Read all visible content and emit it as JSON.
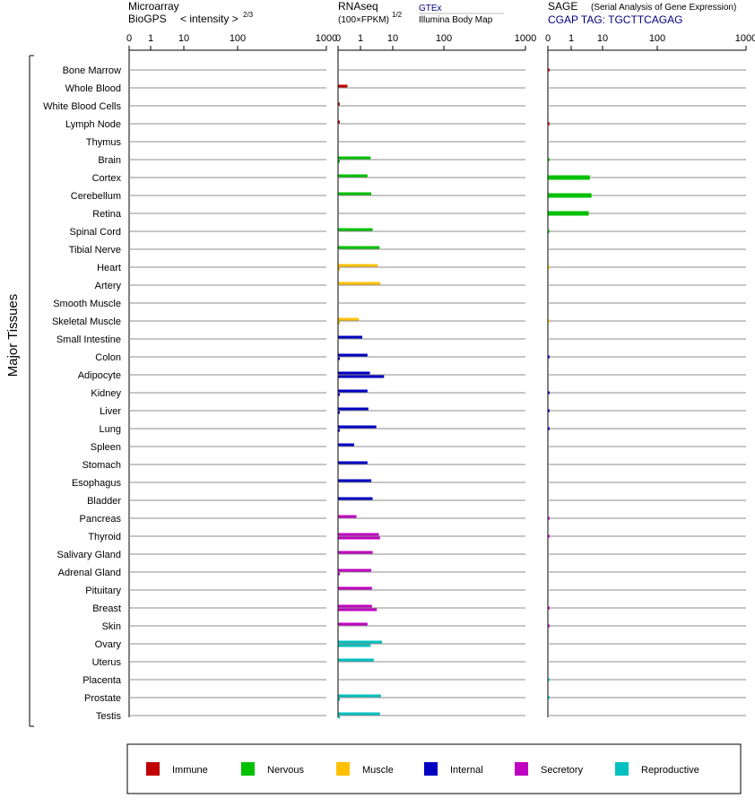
{
  "colors": {
    "Immune": "#c00000",
    "Nervous": "#00c000",
    "Muscle": "#ffc000",
    "Internal": "#0000c0",
    "Secretory": "#c000c0",
    "Reproductive": "#00c0c0"
  },
  "headers": {
    "microarray": {
      "line1": "Microarray",
      "line2": "BioGPS",
      "line3": "< intensity >",
      "exp": "2/3"
    },
    "rnaseq": {
      "line1": "RNAseq",
      "line2": "(100×FPKM)",
      "exp": "1/2",
      "src1": "GTEx",
      "src2": "Illumina Body Map"
    },
    "sage": {
      "line1": "SAGE",
      "line1b": "(Serial Analysis of Gene Expression)",
      "line2": "CGAP TAG: TGCTTCAGAG"
    }
  },
  "y_group_label": "Major Tissues",
  "chart_data": [
    {
      "type": "bar",
      "panel": "microarray",
      "title": "Microarray BioGPS < intensity >2/3",
      "x_ticks": [
        "0",
        "1",
        "10",
        "100",
        "1000"
      ],
      "xlim": [
        0,
        1000
      ],
      "x_scale": "power 2/3",
      "categories": [
        "Bone Marrow",
        "Whole Blood",
        "White Blood Cells",
        "Lymph Node",
        "Thymus",
        "Brain",
        "Cortex",
        "Cerebellum",
        "Retina",
        "Spinal Cord",
        "Tibial Nerve",
        "Heart",
        "Artery",
        "Smooth Muscle",
        "Skeletal Muscle",
        "Small Intestine",
        "Colon",
        "Adipocyte",
        "Kidney",
        "Liver",
        "Lung",
        "Spleen",
        "Stomach",
        "Esophagus",
        "Bladder",
        "Pancreas",
        "Thyroid",
        "Salivary Gland",
        "Adrenal Gland",
        "Pituitary",
        "Breast",
        "Skin",
        "Ovary",
        "Uterus",
        "Placenta",
        "Prostate",
        "Testis"
      ],
      "series": []
    },
    {
      "type": "bar",
      "panel": "rnaseq",
      "title": "RNAseq (100×FPKM)1/2",
      "x_ticks": [
        "0",
        "1",
        "10",
        "100",
        "1000"
      ],
      "xlim": [
        0,
        1000
      ],
      "x_scale": "power 1/2",
      "categories": [
        "Bone Marrow",
        "Whole Blood",
        "White Blood Cells",
        "Lymph Node",
        "Thymus",
        "Brain",
        "Cortex",
        "Cerebellum",
        "Retina",
        "Spinal Cord",
        "Tibial Nerve",
        "Heart",
        "Artery",
        "Smooth Muscle",
        "Skeletal Muscle",
        "Small Intestine",
        "Colon",
        "Adipocyte",
        "Kidney",
        "Liver",
        "Lung",
        "Spleen",
        "Stomach",
        "Esophagus",
        "Bladder",
        "Pancreas",
        "Thyroid",
        "Salivary Gland",
        "Adrenal Gland",
        "Pituitary",
        "Breast",
        "Skin",
        "Ovary",
        "Uterus",
        "Placenta",
        "Prostate",
        "Testis"
      ],
      "groups": [
        "Immune",
        "Immune",
        "Immune",
        "Immune",
        "Immune",
        "Nervous",
        "Nervous",
        "Nervous",
        "Nervous",
        "Nervous",
        "Nervous",
        "Muscle",
        "Muscle",
        "Muscle",
        "Muscle",
        "Internal",
        "Internal",
        "Internal",
        "Internal",
        "Internal",
        "Internal",
        "Internal",
        "Internal",
        "Internal",
        "Internal",
        "Secretory",
        "Secretory",
        "Secretory",
        "Secretory",
        "Secretory",
        "Secretory",
        "Secretory",
        "Reproductive",
        "Reproductive",
        "Reproductive",
        "Reproductive",
        "Reproductive"
      ],
      "series": [
        {
          "name": "GTEx",
          "values": [
            null,
            0.4,
            0.01,
            0.01,
            null,
            2.0,
            1.6,
            2.1,
            null,
            2.3,
            3.8,
            3.3,
            4.0,
            null,
            0.9,
            1.1,
            1.6,
            1.9,
            1.6,
            1.7,
            3.0,
            0.7,
            1.6,
            2.1,
            2.3,
            0.8,
            3.6,
            2.3,
            2.1,
            2.2,
            2.2,
            1.6,
            4.5,
            2.5,
            null,
            4.2,
            3.9
          ]
        },
        {
          "name": "Illumina Body Map",
          "values": [
            null,
            null,
            null,
            null,
            null,
            0.01,
            null,
            null,
            null,
            null,
            null,
            0.01,
            null,
            null,
            0.01,
            null,
            0.01,
            5.2,
            0.01,
            0.01,
            0.02,
            null,
            null,
            null,
            null,
            null,
            3.9,
            null,
            0.01,
            null,
            3.1,
            null,
            2.0,
            null,
            null,
            0.01,
            0.03
          ]
        }
      ]
    },
    {
      "type": "bar",
      "panel": "sage",
      "title": "SAGE (Serial Analysis of Gene Expression) CGAP TAG: TGCTTCAGAG",
      "x_ticks": [
        "0",
        "1",
        "10",
        "100",
        "1000"
      ],
      "xlim": [
        0,
        1000
      ],
      "x_scale": "power 1/2",
      "categories": [
        "Bone Marrow",
        "Whole Blood",
        "White Blood Cells",
        "Lymph Node",
        "Thymus",
        "Brain",
        "Cortex",
        "Cerebellum",
        "Retina",
        "Spinal Cord",
        "Tibial Nerve",
        "Heart",
        "Artery",
        "Smooth Muscle",
        "Skeletal Muscle",
        "Small Intestine",
        "Colon",
        "Adipocyte",
        "Kidney",
        "Liver",
        "Lung",
        "Spleen",
        "Stomach",
        "Esophagus",
        "Bladder",
        "Pancreas",
        "Thyroid",
        "Salivary Gland",
        "Adrenal Gland",
        "Pituitary",
        "Breast",
        "Skin",
        "Ovary",
        "Uterus",
        "Placenta",
        "Prostate",
        "Testis"
      ],
      "groups": [
        "Immune",
        "Immune",
        "Immune",
        "Immune",
        "Immune",
        "Nervous",
        "Nervous",
        "Nervous",
        "Nervous",
        "Nervous",
        "Nervous",
        "Muscle",
        "Muscle",
        "Muscle",
        "Muscle",
        "Internal",
        "Internal",
        "Internal",
        "Internal",
        "Internal",
        "Internal",
        "Internal",
        "Internal",
        "Internal",
        "Internal",
        "Secretory",
        "Secretory",
        "Secretory",
        "Secretory",
        "Secretory",
        "Secretory",
        "Secretory",
        "Reproductive",
        "Reproductive",
        "Reproductive",
        "Reproductive",
        "Reproductive"
      ],
      "series": [
        {
          "name": "CGAP TAG: TGCTTCAGAG",
          "values": [
            0.02,
            null,
            null,
            0.02,
            null,
            0.02,
            3.8,
            4.3,
            3.5,
            0.02,
            null,
            0.01,
            null,
            null,
            0.01,
            null,
            0.02,
            null,
            0.02,
            0.02,
            0.02,
            null,
            null,
            null,
            null,
            0.02,
            0.02,
            null,
            null,
            null,
            0.02,
            0.02,
            null,
            null,
            0.02,
            0.02,
            null
          ]
        }
      ]
    }
  ],
  "legend": [
    {
      "label": "Immune",
      "color": "#c00000"
    },
    {
      "label": "Nervous",
      "color": "#00c000"
    },
    {
      "label": "Muscle",
      "color": "#ffc000"
    },
    {
      "label": "Internal",
      "color": "#0000c0"
    },
    {
      "label": "Secretory",
      "color": "#c000c0"
    },
    {
      "label": "Reproductive",
      "color": "#00c0c0"
    }
  ]
}
